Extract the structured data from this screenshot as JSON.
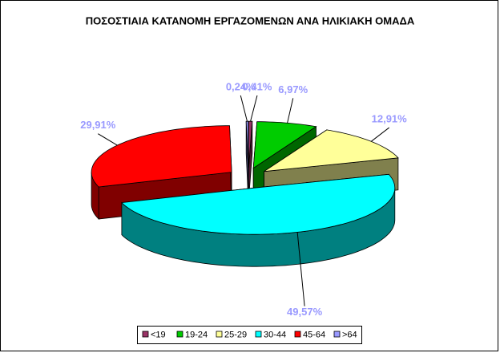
{
  "chart_data": {
    "type": "pie3d",
    "title": "ΠΟΣΟΣΤΙΑΙΑ ΚΑΤΑΝΟΜΗ ΕΡΓΑΖΟΜΕΝΩΝ ΑΝΑ ΗΛΙΚΙΑΚΗ ΟΜΑΔΑ",
    "categories": [
      "<19",
      "19-24",
      "25-29",
      "30-44",
      "45-64",
      ">64"
    ],
    "values": [
      0.41,
      6.97,
      12.91,
      49.57,
      29.91,
      0.24
    ],
    "value_labels": [
      "0,41%",
      "6,97%",
      "12,91%",
      "49,57%",
      "29,91%",
      "0,24%"
    ],
    "colors": [
      "#993366",
      "#00cc00",
      "#ffff99",
      "#00ffff",
      "#ff0000",
      "#9999ff"
    ],
    "legend": "bottom"
  }
}
